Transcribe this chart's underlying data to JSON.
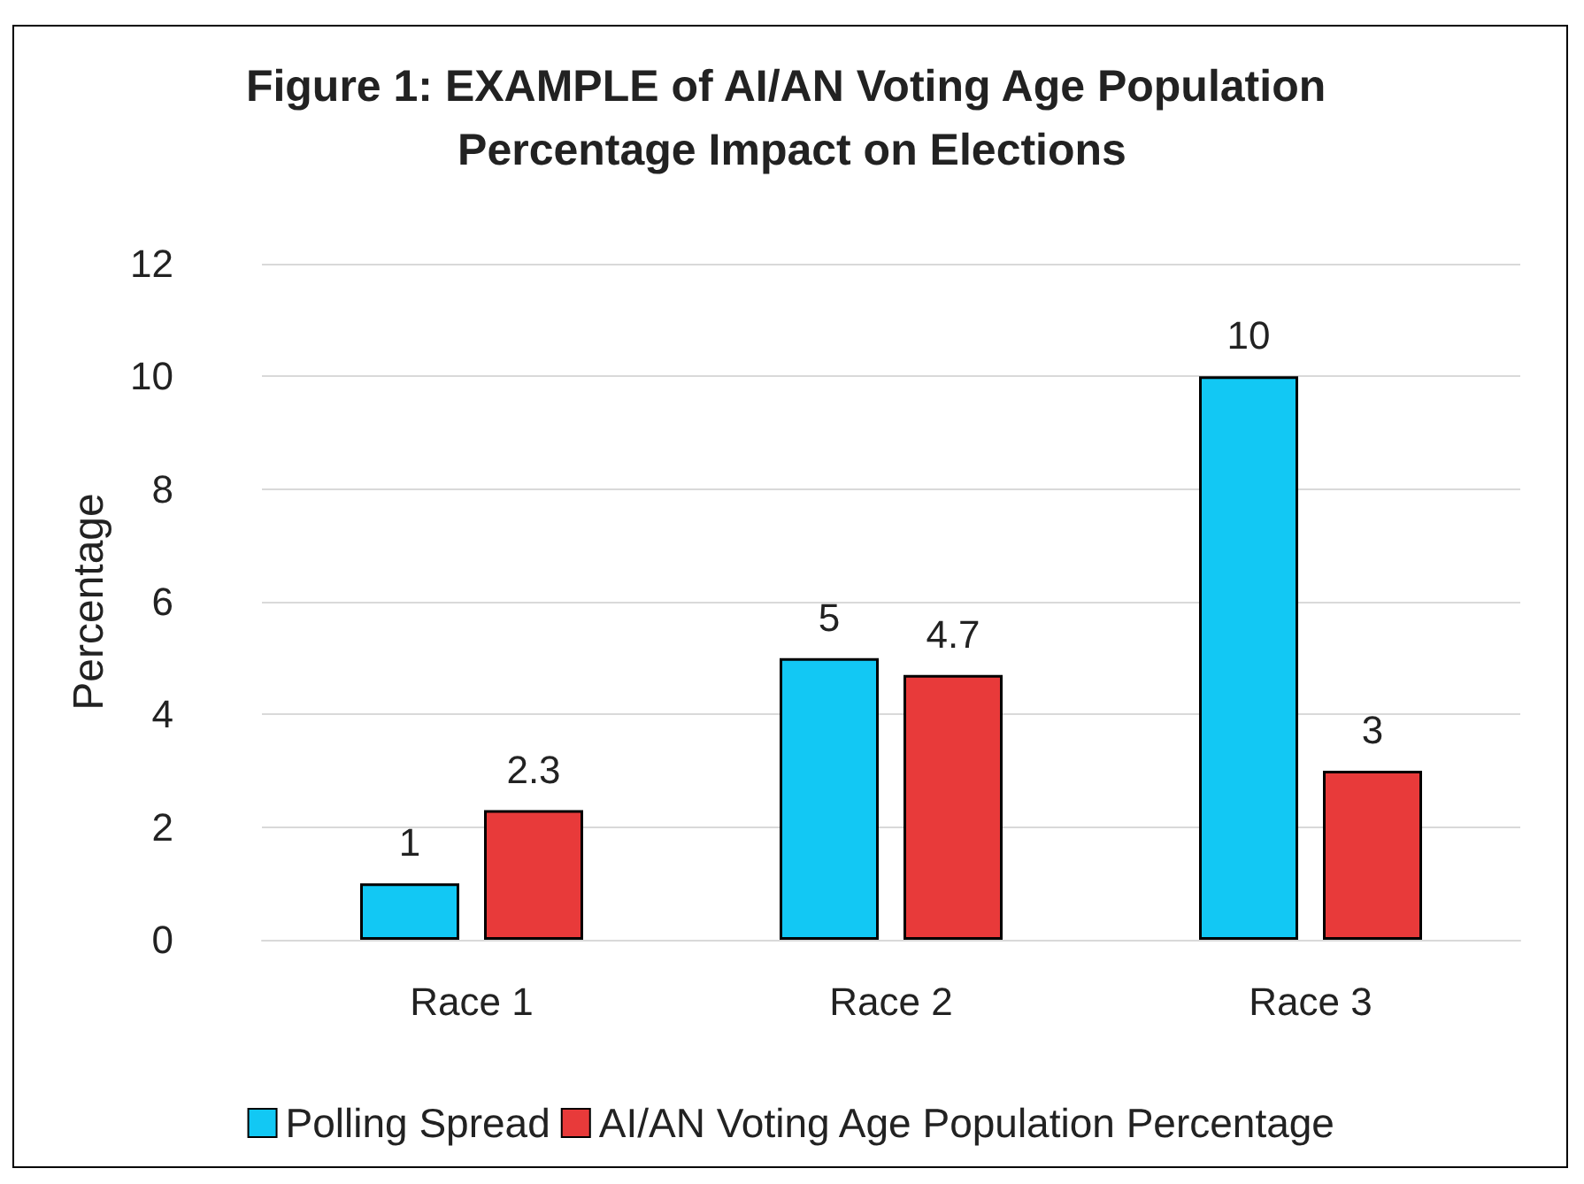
{
  "chart_data": {
    "type": "bar",
    "title": "Figure 1: EXAMPLE of AI/AN Voting Age Population Percentage Impact on Elections",
    "ylabel": "Percentage",
    "categories": [
      "Race 1",
      "Race 2",
      "Race 3"
    ],
    "series": [
      {
        "name": "Polling Spread",
        "color": "#12c8f4",
        "values": [
          1,
          5,
          10
        ]
      },
      {
        "name": "AI/AN Voting Age Population Percentage",
        "color": "#e83a3a",
        "values": [
          2.3,
          4.7,
          3
        ]
      }
    ],
    "ylim": [
      0,
      12
    ],
    "yticks": [
      0,
      2,
      4,
      6,
      8,
      10,
      12
    ],
    "grid": "y",
    "legend": "bottom",
    "data_labels": true
  }
}
